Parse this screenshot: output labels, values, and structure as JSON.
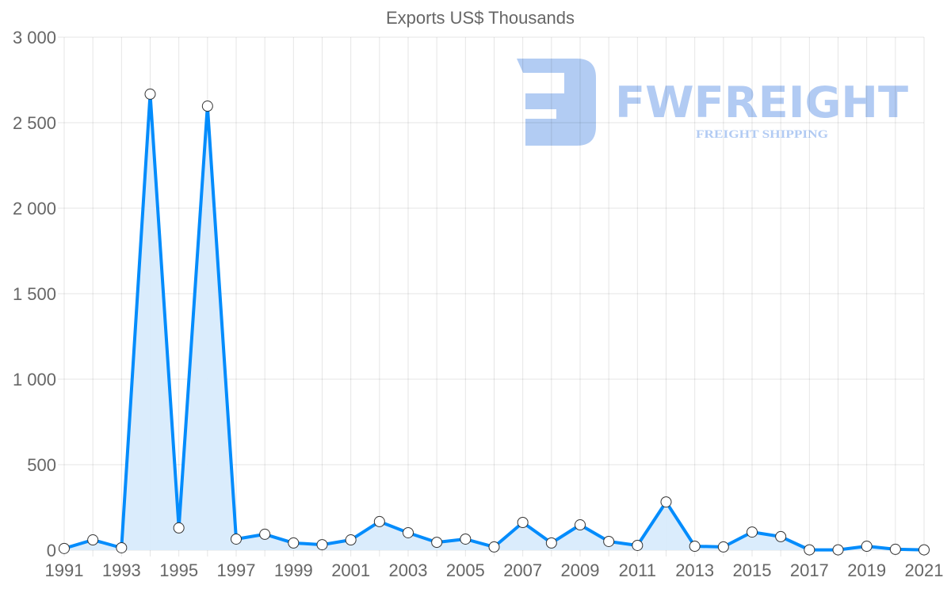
{
  "chart_data": {
    "type": "line",
    "title": "Exports US$ Thousands",
    "xlabel": "",
    "ylabel": "",
    "x": [
      1991,
      1992,
      1993,
      1994,
      1995,
      1996,
      1997,
      1998,
      1999,
      2000,
      2001,
      2002,
      2003,
      2004,
      2005,
      2006,
      2007,
      2008,
      2009,
      2010,
      2011,
      2012,
      2013,
      2014,
      2015,
      2016,
      2017,
      2018,
      2019,
      2020,
      2021
    ],
    "series": [
      {
        "name": "Exports US$ Thousands",
        "values": [
          10,
          60,
          14,
          2667,
          130,
          2597,
          65,
          93,
          42,
          32,
          60,
          167,
          102,
          46,
          65,
          19,
          162,
          42,
          148,
          51,
          28,
          282,
          23,
          19,
          106,
          79,
          2,
          2,
          23,
          5,
          2
        ],
        "color": "#038cfc",
        "fill": "#d8ebfc"
      }
    ],
    "ylim": [
      0,
      3000
    ],
    "yticks": [
      0,
      500,
      1000,
      1500,
      2000,
      2500,
      3000
    ],
    "ytick_labels": [
      "0",
      "500",
      "1 000",
      "1 500",
      "2 000",
      "2 500",
      "3 000"
    ],
    "xtick_labels": [
      "1991",
      "1993",
      "1995",
      "1997",
      "1999",
      "2001",
      "2003",
      "2005",
      "2007",
      "2009",
      "2011",
      "2013",
      "2015",
      "2017",
      "2019",
      "2021"
    ],
    "grid": true,
    "legend": "none"
  },
  "watermark": {
    "brand": "FWFREIGHT",
    "tagline": "FREIGHT SHIPPING",
    "color": "#aac6f2"
  }
}
